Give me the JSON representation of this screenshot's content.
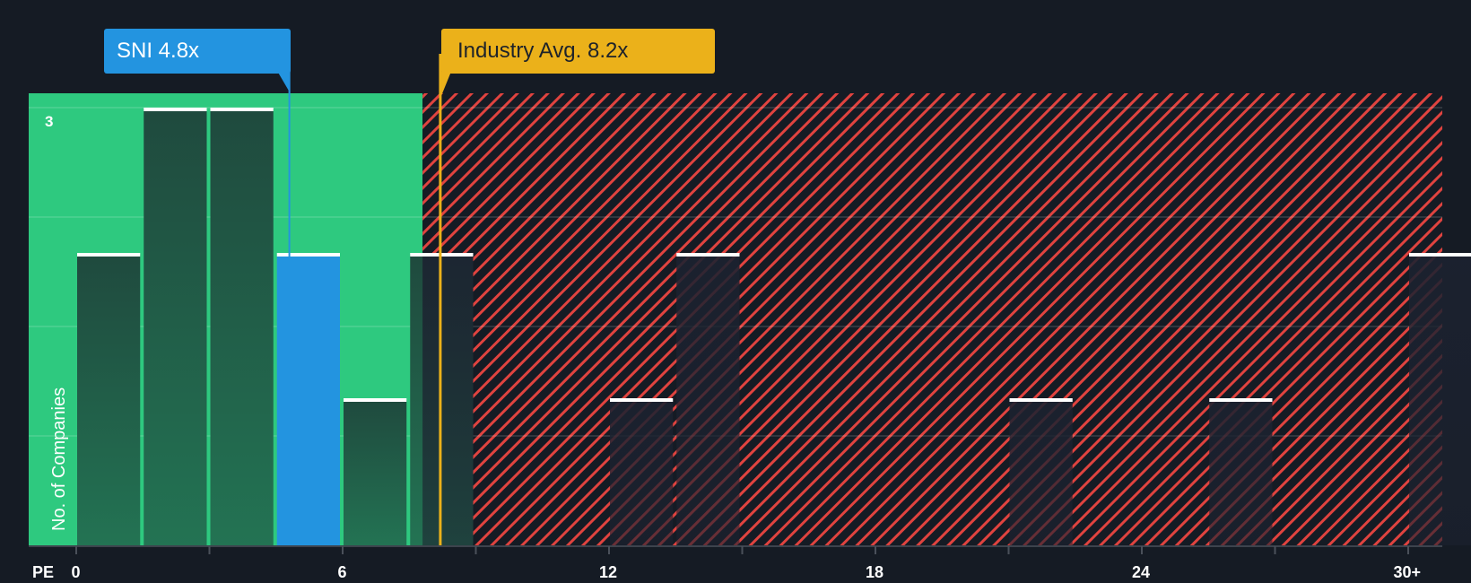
{
  "chart_data": {
    "type": "bar",
    "title": "",
    "xlabel": "PE",
    "ylabel": "No. of Companies",
    "x_tick_labels": [
      "0",
      "6",
      "12",
      "18",
      "24",
      "30+"
    ],
    "x_ticks": [
      0,
      6,
      12,
      18,
      24,
      30
    ],
    "y_tick_labels": [
      "3"
    ],
    "ylim": [
      0,
      3
    ],
    "xlim": [
      -1,
      31.7
    ],
    "bin_width": 1.5,
    "bins": [
      {
        "start": 0,
        "end": 1.5,
        "count": 2
      },
      {
        "start": 1.5,
        "end": 3,
        "count": 3
      },
      {
        "start": 3,
        "end": 4.5,
        "count": 3
      },
      {
        "start": 4.5,
        "end": 6,
        "count": 2,
        "highlight": "SNI"
      },
      {
        "start": 6,
        "end": 7.5,
        "count": 1
      },
      {
        "start": 7.5,
        "end": 9,
        "count": 2
      },
      {
        "start": 9,
        "end": 10.5,
        "count": 0
      },
      {
        "start": 10.5,
        "end": 12,
        "count": 0
      },
      {
        "start": 12,
        "end": 13.5,
        "count": 1
      },
      {
        "start": 13.5,
        "end": 15,
        "count": 2
      },
      {
        "start": 15,
        "end": 16.5,
        "count": 0
      },
      {
        "start": 16.5,
        "end": 18,
        "count": 0
      },
      {
        "start": 18,
        "end": 19.5,
        "count": 0
      },
      {
        "start": 19.5,
        "end": 21,
        "count": 0
      },
      {
        "start": 21,
        "end": 22.5,
        "count": 1
      },
      {
        "start": 22.5,
        "end": 24,
        "count": 0
      },
      {
        "start": 24,
        "end": 25.5,
        "count": 0
      },
      {
        "start": 25.5,
        "end": 27,
        "count": 1
      },
      {
        "start": 27,
        "end": 28.5,
        "count": 0
      },
      {
        "start": 28.5,
        "end": 30,
        "count": 0
      },
      {
        "start": 30,
        "end": 31.5,
        "count": 2,
        "label": "30+"
      }
    ],
    "annotations": [
      {
        "label": "SNI 4.8x",
        "value": 4.8,
        "color": "#2394e0"
      },
      {
        "label": "Industry Avg. 8.2x",
        "value": 8.2,
        "color": "#ebb11a"
      }
    ],
    "regions": [
      {
        "name": "undervalued",
        "from": -1,
        "to": 7.8,
        "color": "#2ec97f"
      },
      {
        "name": "overvalued",
        "from": 7.8,
        "to": 31.7,
        "pattern": "red-hatch",
        "color": "#e0433f"
      }
    ],
    "grid": true,
    "legend": "none"
  },
  "callouts": {
    "company": "SNI 4.8x",
    "industry": "Industry Avg. 8.2x"
  },
  "axis": {
    "x_label": "PE",
    "y_label": "No. of Companies",
    "y_max_label": "3"
  },
  "colors": {
    "background": "#151b24",
    "green_zone": "#2ec97f",
    "bar_dark": "#1f4a3e",
    "highlight_bar": "#2394e0",
    "industry_line": "#ebb11a",
    "hatch": "#e0433f"
  }
}
